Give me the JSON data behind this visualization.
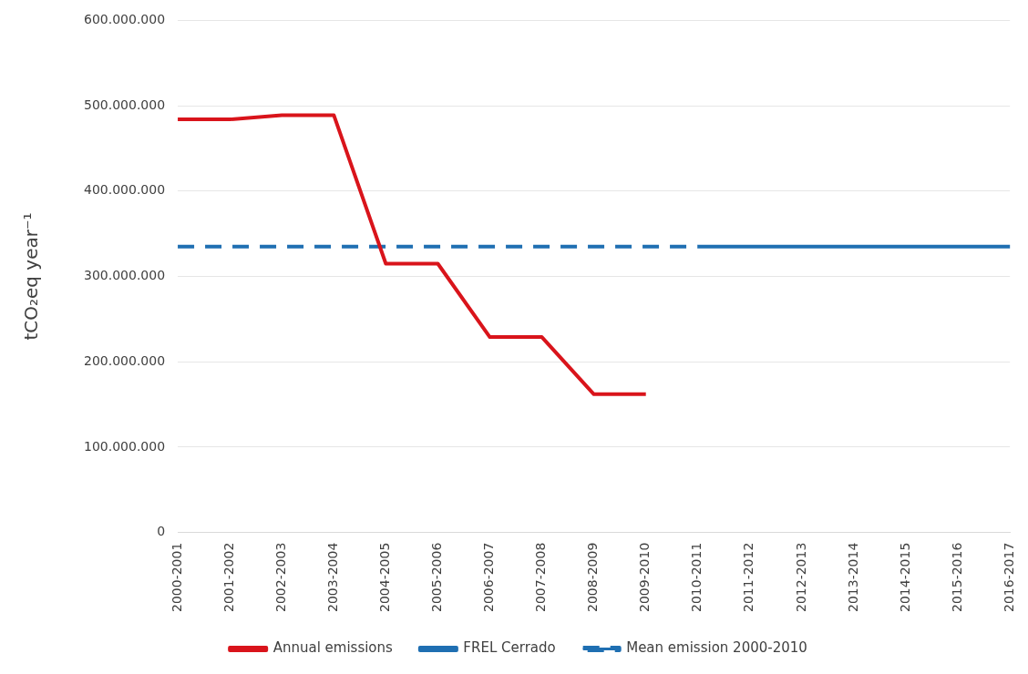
{
  "chart_data": {
    "type": "line",
    "ylabel": "tCO₂eq year⁻¹",
    "categories": [
      "2000-2001",
      "2001-2002",
      "2002-2003",
      "2003-2004",
      "2004-2005",
      "2005-2006",
      "2006-2007",
      "2007-2008",
      "2008-2009",
      "2009-2010",
      "2010-2011",
      "2011-2012",
      "2012-2013",
      "2013-2014",
      "2014-2015",
      "2015-2016",
      "2016-2017"
    ],
    "series": [
      {
        "name": "Annual emissions",
        "color": "#d9141b",
        "line_style": "solid",
        "values": [
          484000000,
          484000000,
          489000000,
          489000000,
          315000000,
          315000000,
          229000000,
          229000000,
          162000000,
          162000000,
          null,
          null,
          null,
          null,
          null,
          null,
          null
        ]
      },
      {
        "name": "FREL Cerrado",
        "color": "#1f6fb2",
        "line_style": "solid",
        "values": [
          null,
          null,
          null,
          null,
          null,
          null,
          null,
          null,
          null,
          null,
          335000000,
          335000000,
          335000000,
          335000000,
          335000000,
          335000000,
          335000000
        ]
      },
      {
        "name": "Mean emission 2000-2010",
        "color": "#1f6fb2",
        "line_style": "dashed",
        "values": [
          335000000,
          335000000,
          335000000,
          335000000,
          335000000,
          335000000,
          335000000,
          335000000,
          335000000,
          335000000,
          335000000,
          null,
          null,
          null,
          null,
          null,
          null
        ]
      }
    ],
    "ylim": [
      0,
      600000000
    ],
    "yticks": [
      {
        "value": 0,
        "label": "0"
      },
      {
        "value": 100000000,
        "label": "100.000.000"
      },
      {
        "value": 200000000,
        "label": "200.000.000"
      },
      {
        "value": 300000000,
        "label": "300.000.000"
      },
      {
        "value": 400000000,
        "label": "400.000.000"
      },
      {
        "value": 500000000,
        "label": "500.000.000"
      },
      {
        "value": 600000000,
        "label": "600.000.000"
      }
    ],
    "grid": "y",
    "legend": "bottom",
    "marker": "none"
  }
}
